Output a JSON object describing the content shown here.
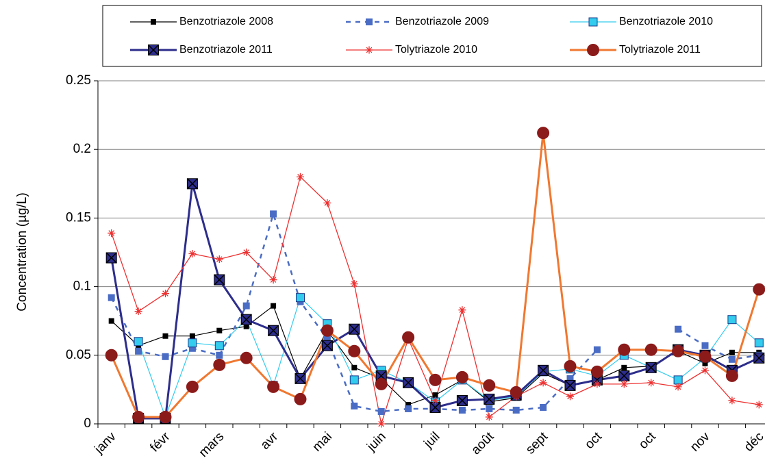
{
  "chart_data": {
    "type": "line",
    "y_label": "Concentration (µg/L)",
    "categories": [
      "janv",
      null,
      "févr",
      null,
      "mars",
      null,
      "avr",
      null,
      "mai",
      null,
      "juin",
      null,
      "juil",
      null,
      "août",
      null,
      "sept",
      null,
      "oct",
      null,
      "oct",
      null,
      "nov",
      null,
      "déc"
    ],
    "ylim": [
      0,
      0.25
    ],
    "yticks": [
      0,
      0.05,
      0.1,
      0.15,
      0.2,
      0.25
    ],
    "grid": true,
    "legend": "top",
    "series": [
      {
        "name": "Benzotriazole 2008",
        "color": "#000000",
        "values": [
          0.075,
          0.057,
          0.064,
          0.064,
          0.068,
          0.071,
          0.086,
          0.033,
          0.068,
          0.041,
          0.033,
          0.014,
          0.021,
          0.032,
          0.016,
          0.019,
          0.037,
          0.028,
          0.032,
          0.041,
          0.042,
          0.053,
          0.044,
          0.052,
          0.052
        ]
      },
      {
        "name": "Benzotriazole 2009",
        "color": "#4a6cc4",
        "values": [
          0.092,
          0.053,
          0.049,
          0.055,
          0.05,
          0.086,
          0.153,
          0.089,
          0.062,
          0.013,
          0.009,
          0.011,
          0.011,
          0.01,
          0.011,
          0.01,
          0.012,
          0.033,
          0.054,
          null,
          null,
          0.069,
          0.057,
          0.047,
          0.05
        ]
      },
      {
        "name": "Benzotriazole 2010",
        "color": "#33ccee",
        "values": [
          null,
          0.06,
          0.005,
          0.059,
          0.057,
          0.076,
          0.028,
          0.092,
          0.073,
          0.032,
          0.039,
          0.03,
          0.016,
          0.032,
          0.017,
          0.02,
          0.038,
          0.04,
          0.035,
          0.05,
          0.041,
          0.032,
          0.048,
          0.076,
          0.059
        ]
      },
      {
        "name": "Benzotriazole 2011",
        "color": "#2d2d8c",
        "values": [
          0.121,
          0.004,
          0.004,
          0.175,
          0.105,
          0.076,
          0.068,
          0.033,
          0.057,
          0.069,
          0.035,
          0.03,
          0.012,
          0.017,
          0.018,
          0.021,
          0.039,
          0.028,
          0.032,
          0.035,
          0.041,
          0.054,
          0.05,
          0.039,
          0.048
        ]
      },
      {
        "name": "Tolytriazole 2010",
        "color": "#ee3030",
        "values": [
          0.139,
          0.082,
          0.095,
          0.124,
          0.12,
          0.125,
          0.105,
          0.18,
          0.161,
          0.102,
          0,
          0.062,
          0.017,
          0.083,
          0.005,
          0.02,
          0.03,
          0.02,
          0.029,
          0.029,
          0.03,
          0.027,
          0.039,
          0.017,
          0.014
        ]
      },
      {
        "name": "Tolytriazole 2011",
        "color": "#f07830",
        "values": [
          0.05,
          0.005,
          0.005,
          0.027,
          0.043,
          0.048,
          0.027,
          0.018,
          0.068,
          0.053,
          0.029,
          0.063,
          0.032,
          0.034,
          0.028,
          0.023,
          0.212,
          0.042,
          0.038,
          0.054,
          0.054,
          0.053,
          0.049,
          0.035,
          0.098
        ]
      }
    ]
  }
}
